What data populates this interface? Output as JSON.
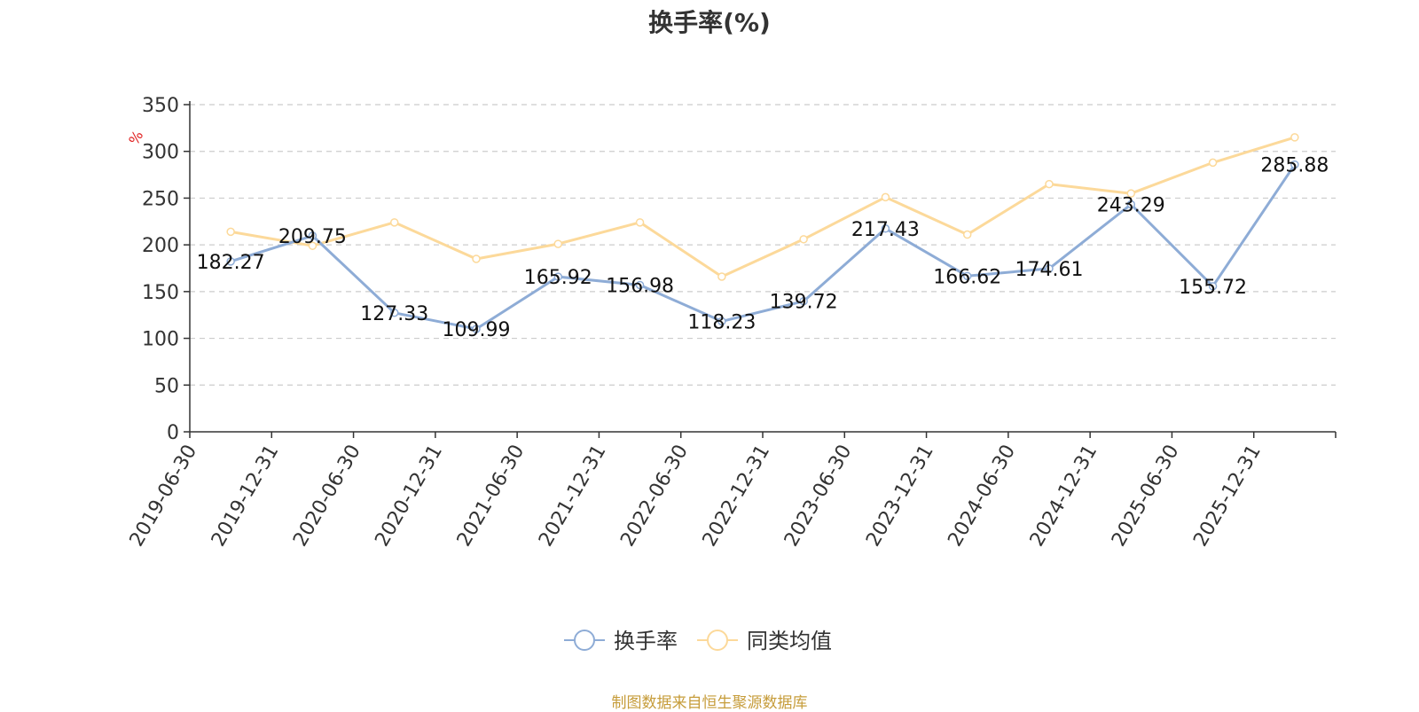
{
  "chart_data": {
    "type": "line",
    "title": "换手率(%)",
    "ylabel": "%",
    "ylim": [
      0,
      350
    ],
    "yticks": [
      0,
      50,
      100,
      150,
      200,
      250,
      300,
      350
    ],
    "grid": true,
    "legend_position": "bottom",
    "categories": [
      "2019-06-30",
      "2019-12-31",
      "2020-06-30",
      "2020-12-31",
      "2021-06-30",
      "2021-12-31",
      "2022-06-30",
      "2022-12-31",
      "2023-06-30",
      "2023-12-31",
      "2024-06-30",
      "2024-12-31",
      "2025-06-30",
      "2025-12-31"
    ],
    "series": [
      {
        "name": "换手率",
        "color": "#8eacd6",
        "values": [
          182.27,
          209.75,
          127.33,
          109.99,
          165.92,
          156.98,
          118.23,
          139.72,
          217.43,
          166.62,
          174.61,
          243.29,
          155.72,
          285.88
        ],
        "labels": [
          "182.27",
          "209.75",
          "127.33",
          "109.99",
          "165.92",
          "156.98",
          "118.23",
          "139.72",
          "217.43",
          "166.62",
          "174.61",
          "243.29",
          "155.72",
          "285.88"
        ]
      },
      {
        "name": "同类均值",
        "color": "#fcd99a",
        "values": [
          214,
          199,
          224,
          185,
          201,
          224,
          166,
          206,
          251,
          211,
          265,
          255,
          288,
          315
        ]
      }
    ]
  },
  "footer": {
    "source": "制图数据来自恒生聚源数据库"
  }
}
